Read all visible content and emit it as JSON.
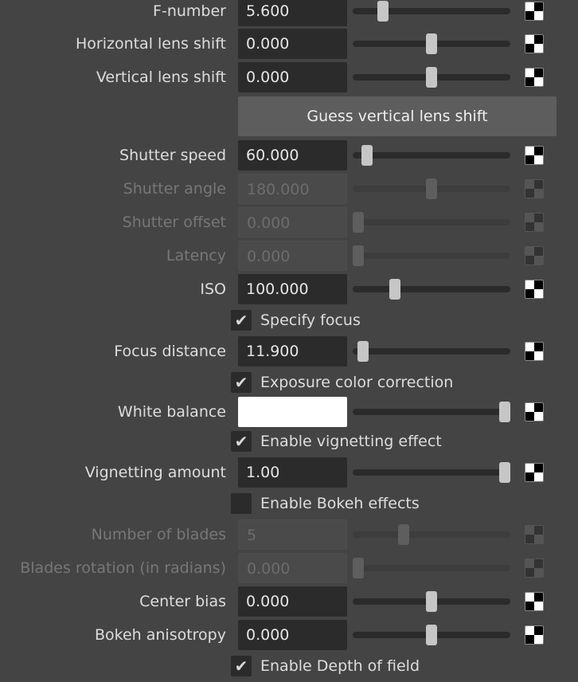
{
  "rows": [
    {
      "type": "slider",
      "label": "F-number",
      "value": "5.600",
      "slider": 0.17,
      "enabled": true
    },
    {
      "type": "slider",
      "label": "Horizontal lens shift",
      "value": "0.000",
      "slider": 0.5,
      "enabled": true
    },
    {
      "type": "slider",
      "label": "Vertical lens shift",
      "value": "0.000",
      "slider": 0.5,
      "enabled": true
    },
    {
      "type": "button",
      "label": "Guess vertical lens shift"
    },
    {
      "type": "slider",
      "label": "Shutter speed",
      "value": "60.000",
      "slider": 0.06,
      "enabled": true
    },
    {
      "type": "slider",
      "label": "Shutter angle",
      "value": "180.000",
      "slider": 0.5,
      "enabled": false
    },
    {
      "type": "slider",
      "label": "Shutter offset",
      "value": "0.000",
      "slider": 0,
      "enabled": false
    },
    {
      "type": "slider",
      "label": "Latency",
      "value": "0.000",
      "slider": 0,
      "enabled": false
    },
    {
      "type": "slider",
      "label": "ISO",
      "value": "100.000",
      "slider": 0.25,
      "enabled": true
    },
    {
      "type": "checkbox",
      "label": "Specify focus",
      "checked": true
    },
    {
      "type": "slider",
      "label": "Focus distance",
      "value": "11.900",
      "slider": 0.03,
      "enabled": true
    },
    {
      "type": "checkbox",
      "label": "Exposure color correction",
      "checked": true
    },
    {
      "type": "color",
      "label": "White balance",
      "color": "#ffffff",
      "slider": 1.0,
      "enabled": true
    },
    {
      "type": "checkbox",
      "label": "Enable vignetting effect",
      "checked": true
    },
    {
      "type": "slider",
      "label": "Vignetting amount",
      "value": "1.00",
      "slider": 1.0,
      "enabled": true
    },
    {
      "type": "checkbox",
      "label": "Enable Bokeh effects",
      "checked": false
    },
    {
      "type": "slider",
      "label": "Number of blades",
      "value": "5",
      "slider": 0.31,
      "enabled": false
    },
    {
      "type": "slider",
      "label": "Blades rotation (in radians)",
      "value": "0.000",
      "slider": 0,
      "enabled": false
    },
    {
      "type": "slider",
      "label": "Center bias",
      "value": "0.000",
      "slider": 0.5,
      "enabled": true
    },
    {
      "type": "slider",
      "label": "Bokeh anisotropy",
      "value": "0.000",
      "slider": 0.5,
      "enabled": true
    },
    {
      "type": "checkbox",
      "label": "Enable Depth of field",
      "checked": true
    }
  ],
  "icons": {
    "keyframe": "keyframe-checker-icon",
    "check": "checkmark-icon"
  }
}
